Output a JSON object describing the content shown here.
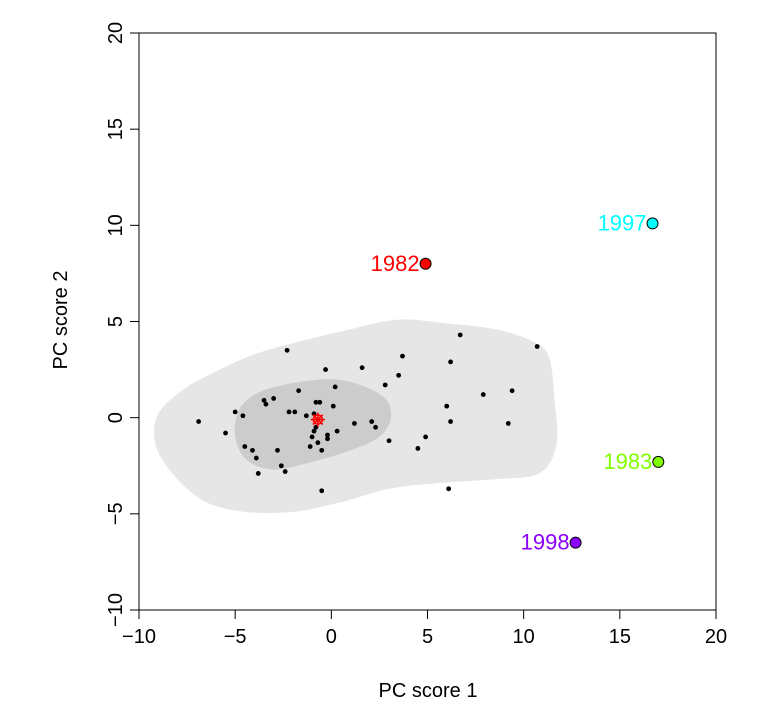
{
  "chart_data": {
    "type": "scatter",
    "xlabel": "PC score 1",
    "ylabel": "PC score 2",
    "xlim": [
      -10,
      20
    ],
    "ylim": [
      -10,
      20
    ],
    "x_ticks": [
      "−10",
      "−5",
      "0",
      "5",
      "10",
      "15",
      "20"
    ],
    "y_ticks": [
      "−10",
      "−5",
      "0",
      "5",
      "10",
      "15",
      "20"
    ],
    "grid": false,
    "legend": "none",
    "regions": [
      {
        "name": "outer-density-region",
        "color": "#e6e6e6",
        "polygon": [
          [
            -9.2,
            -0.5
          ],
          [
            -9.0,
            -1.8
          ],
          [
            -8.0,
            -3.2
          ],
          [
            -6.5,
            -4.4
          ],
          [
            -4.5,
            -4.9
          ],
          [
            -2.0,
            -4.9
          ],
          [
            0.5,
            -4.4
          ],
          [
            3.0,
            -3.7
          ],
          [
            5.5,
            -3.4
          ],
          [
            8.5,
            -3.2
          ],
          [
            10.8,
            -2.9
          ],
          [
            11.7,
            -1.4
          ],
          [
            11.6,
            1.0
          ],
          [
            11.3,
            3.2
          ],
          [
            10.4,
            4.0
          ],
          [
            8.5,
            4.6
          ],
          [
            6.0,
            4.9
          ],
          [
            3.5,
            5.1
          ],
          [
            1.0,
            4.6
          ],
          [
            -1.5,
            4.0
          ],
          [
            -4.0,
            3.3
          ],
          [
            -6.0,
            2.4
          ],
          [
            -7.5,
            1.6
          ],
          [
            -8.8,
            0.5
          ]
        ]
      },
      {
        "name": "inner-density-region",
        "color": "#cccccc",
        "polygon": [
          [
            -5.0,
            -1.0
          ],
          [
            -4.4,
            -2.2
          ],
          [
            -3.0,
            -2.7
          ],
          [
            -1.0,
            -2.3
          ],
          [
            1.0,
            -1.7
          ],
          [
            2.5,
            -1.0
          ],
          [
            3.1,
            0.0
          ],
          [
            2.8,
            1.0
          ],
          [
            1.5,
            1.7
          ],
          [
            0.0,
            2.0
          ],
          [
            -2.0,
            1.8
          ],
          [
            -3.8,
            1.3
          ],
          [
            -4.8,
            0.4
          ]
        ]
      }
    ],
    "points": [
      [
        -6.9,
        -0.2
      ],
      [
        -5.5,
        -0.8
      ],
      [
        -5.0,
        0.3
      ],
      [
        -4.6,
        0.1
      ],
      [
        -4.5,
        -1.5
      ],
      [
        -4.1,
        -1.7
      ],
      [
        -3.9,
        -2.1
      ],
      [
        -3.8,
        -2.9
      ],
      [
        -3.5,
        0.9
      ],
      [
        -3.4,
        0.7
      ],
      [
        -3.0,
        1.0
      ],
      [
        -2.8,
        -1.7
      ],
      [
        -2.6,
        -2.5
      ],
      [
        -2.4,
        -2.8
      ],
      [
        -2.3,
        3.5
      ],
      [
        -2.2,
        0.3
      ],
      [
        -1.9,
        0.3
      ],
      [
        -1.7,
        1.4
      ],
      [
        -1.3,
        0.1
      ],
      [
        -1.1,
        -1.5
      ],
      [
        -1.0,
        -1.0
      ],
      [
        -0.9,
        0.2
      ],
      [
        -0.9,
        -0.7
      ],
      [
        -0.8,
        0.8
      ],
      [
        -0.8,
        -0.5
      ],
      [
        -0.7,
        -1.3
      ],
      [
        -0.6,
        0.8
      ],
      [
        -0.5,
        -1.7
      ],
      [
        -0.5,
        -3.8
      ],
      [
        -0.3,
        2.5
      ],
      [
        -0.2,
        -0.9
      ],
      [
        -0.2,
        -1.1
      ],
      [
        0.1,
        0.6
      ],
      [
        0.2,
        1.6
      ],
      [
        0.3,
        -0.7
      ],
      [
        1.2,
        -0.3
      ],
      [
        1.6,
        2.6
      ],
      [
        2.1,
        -0.2
      ],
      [
        2.3,
        -0.5
      ],
      [
        2.8,
        1.7
      ],
      [
        3.0,
        -1.2
      ],
      [
        3.5,
        2.2
      ],
      [
        3.7,
        3.2
      ],
      [
        4.5,
        -1.6
      ],
      [
        4.9,
        -1.0
      ],
      [
        6.0,
        0.6
      ],
      [
        6.1,
        -3.7
      ],
      [
        6.2,
        -0.2
      ],
      [
        6.2,
        2.9
      ],
      [
        6.7,
        4.3
      ],
      [
        7.9,
        1.2
      ],
      [
        9.2,
        -0.3
      ],
      [
        9.4,
        1.4
      ],
      [
        10.7,
        3.7
      ]
    ],
    "mean_marker": {
      "x": -0.7,
      "y": -0.1,
      "color": "#ff0000"
    },
    "labeled_points": [
      {
        "label": "1982",
        "x": 4.9,
        "y": 8.0,
        "color": "#ff0000"
      },
      {
        "label": "1997",
        "x": 16.7,
        "y": 10.1,
        "color": "#00ffff"
      },
      {
        "label": "1983",
        "x": 17.0,
        "y": -2.3,
        "color": "#7fff00"
      },
      {
        "label": "1998",
        "x": 12.7,
        "y": -6.5,
        "color": "#8b00ff"
      }
    ]
  }
}
